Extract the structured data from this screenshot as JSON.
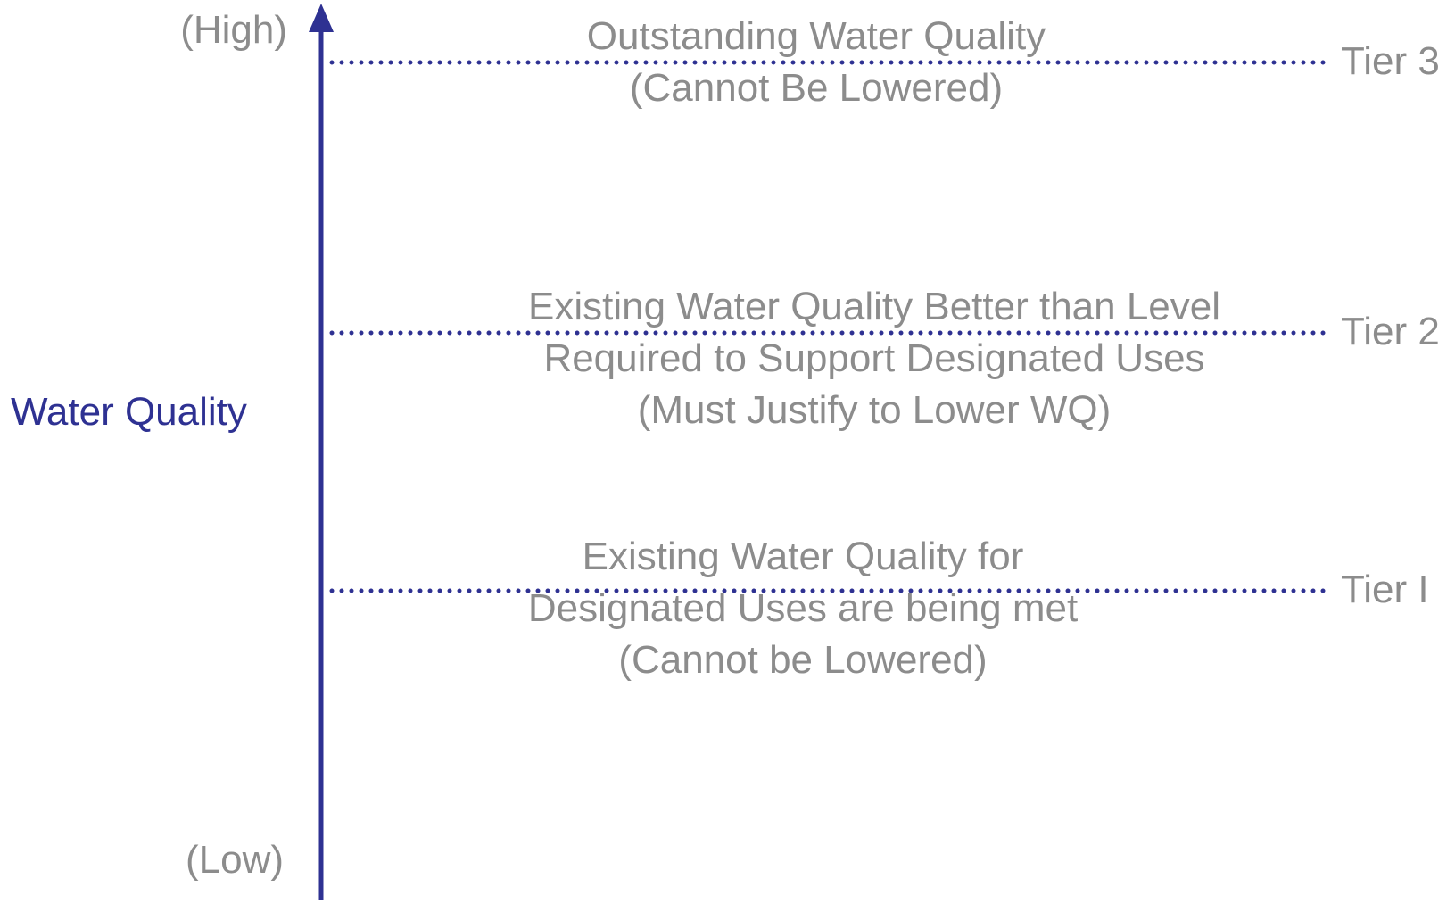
{
  "axis": {
    "label": "Water Quality",
    "high": "(High)",
    "low": "(Low)"
  },
  "tiers": [
    {
      "name": "Tier 3",
      "lines": [
        "Outstanding Water Quality",
        "(Cannot Be Lowered)"
      ]
    },
    {
      "name": "Tier 2",
      "lines": [
        "Existing Water Quality Better than Level",
        "Required to Support Designated Uses",
        "(Must Justify to Lower WQ)"
      ]
    },
    {
      "name": "Tier I",
      "lines": [
        "Existing Water Quality for",
        "Designated Uses are being met",
        "(Cannot be Lowered)"
      ]
    }
  ]
}
